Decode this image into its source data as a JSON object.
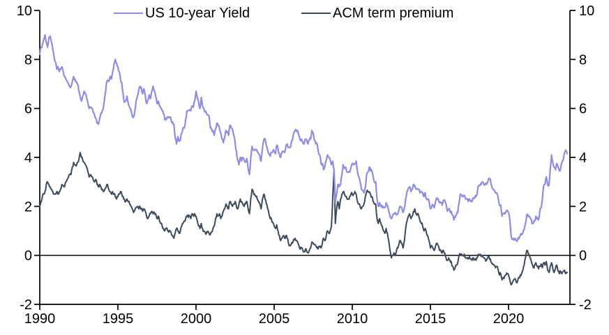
{
  "chart_data": {
    "type": "line",
    "title": "",
    "xlabel": "",
    "ylabel": "",
    "grid": false,
    "legend_position": "top",
    "axis_color": "#000000",
    "background": "#ffffff",
    "ylim": [
      -2,
      10
    ],
    "xlim": [
      1990,
      2023.95
    ],
    "y_ticks_left": [
      "10",
      "8",
      "6",
      "4",
      "2",
      "0",
      "-2"
    ],
    "y_ticks_right": [
      "10",
      "8",
      "6",
      "4",
      "2",
      "0",
      "-2"
    ],
    "y_tick_values": [
      10,
      8,
      6,
      4,
      2,
      0,
      -2
    ],
    "x_tick_labels": [
      "1990",
      "1995",
      "2000",
      "2005",
      "2010",
      "2015",
      "2020"
    ],
    "x_tick_values": [
      1990,
      1995,
      2000,
      2005,
      2010,
      2015,
      2020
    ],
    "zero_line": true,
    "x_start_year": 1990,
    "x_step_months": 1,
    "legend": [
      {
        "label": "US 10-year Yield",
        "color": "#8f8ce8"
      },
      {
        "label": "ACM term premium",
        "color": "#3c4a5c"
      }
    ],
    "series": [
      {
        "name": "US 10-year Yield",
        "color": "#8f8ce8",
        "values": [
          8.2,
          8.5,
          8.6,
          8.8,
          9.0,
          8.7,
          8.5,
          8.9,
          8.95,
          8.7,
          8.4,
          8.1,
          7.9,
          7.6,
          7.7,
          7.5,
          7.6,
          7.7,
          7.5,
          7.3,
          7.2,
          7.1,
          7.0,
          6.9,
          6.9,
          7.1,
          7.3,
          7.2,
          7.1,
          7.0,
          6.7,
          6.5,
          6.3,
          6.5,
          6.7,
          6.6,
          6.4,
          6.2,
          6.0,
          6.05,
          6.0,
          5.85,
          5.75,
          5.6,
          5.4,
          5.35,
          5.6,
          5.8,
          5.9,
          6.1,
          6.5,
          6.95,
          7.15,
          7.1,
          7.3,
          7.2,
          7.5,
          7.8,
          8.0,
          7.85,
          7.7,
          7.5,
          7.2,
          7.05,
          6.6,
          6.25,
          6.3,
          6.5,
          6.2,
          6.05,
          5.95,
          5.7,
          5.65,
          5.9,
          6.3,
          6.5,
          6.75,
          6.9,
          6.85,
          6.6,
          6.8,
          6.55,
          6.2,
          6.35,
          6.55,
          6.4,
          6.7,
          6.9,
          6.7,
          6.5,
          6.2,
          6.3,
          6.1,
          6.0,
          5.9,
          5.8,
          5.55,
          5.6,
          5.65,
          5.65,
          5.65,
          5.5,
          5.45,
          5.35,
          4.8,
          4.55,
          4.85,
          4.65,
          4.7,
          5.0,
          5.2,
          5.2,
          5.55,
          5.9,
          5.9,
          5.95,
          5.9,
          6.1,
          6.05,
          6.3,
          6.7,
          6.4,
          6.25,
          6.0,
          6.45,
          6.1,
          6.0,
          5.85,
          5.8,
          5.75,
          5.7,
          5.2,
          5.15,
          5.1,
          4.9,
          5.15,
          5.4,
          5.3,
          5.2,
          5.0,
          4.75,
          4.6,
          4.8,
          5.1,
          5.05,
          4.9,
          5.3,
          5.2,
          5.15,
          4.9,
          4.6,
          4.25,
          3.9,
          3.7,
          4.0,
          3.85,
          4.0,
          3.9,
          3.8,
          3.95,
          3.55,
          3.3,
          3.95,
          4.45,
          4.3,
          4.3,
          4.3,
          4.25,
          4.15,
          4.05,
          3.85,
          4.35,
          4.7,
          4.75,
          4.5,
          4.3,
          4.15,
          4.05,
          4.2,
          4.25,
          4.25,
          4.15,
          4.5,
          4.35,
          4.15,
          4.0,
          4.2,
          4.25,
          4.2,
          4.45,
          4.55,
          4.4,
          4.4,
          4.55,
          4.7,
          5.0,
          5.1,
          5.1,
          5.1,
          4.9,
          4.7,
          4.75,
          4.6,
          4.55,
          4.75,
          4.7,
          4.55,
          4.7,
          4.75,
          5.1,
          5.0,
          4.7,
          4.55,
          4.55,
          4.2,
          4.1,
          3.75,
          3.75,
          3.5,
          3.65,
          3.9,
          4.1,
          4.0,
          3.9,
          3.7,
          3.85,
          3.5,
          2.15,
          2.5,
          2.9,
          2.8,
          2.9,
          3.3,
          3.7,
          3.55,
          3.6,
          3.4,
          3.4,
          3.4,
          3.6,
          3.75,
          3.7,
          3.75,
          3.85,
          3.4,
          3.2,
          3.0,
          2.7,
          2.65,
          2.55,
          2.75,
          3.3,
          3.4,
          3.6,
          3.45,
          3.45,
          3.2,
          3.0,
          3.0,
          2.3,
          2.0,
          2.15,
          2.0,
          1.95,
          1.95,
          1.95,
          2.15,
          2.05,
          1.8,
          1.6,
          1.5,
          1.65,
          1.7,
          1.75,
          1.65,
          1.7,
          1.9,
          2.0,
          1.95,
          1.75,
          1.95,
          2.3,
          2.6,
          2.75,
          2.8,
          2.6,
          2.7,
          2.9,
          2.85,
          2.7,
          2.7,
          2.7,
          2.55,
          2.6,
          2.55,
          2.4,
          2.55,
          2.3,
          2.3,
          2.2,
          1.9,
          2.0,
          2.05,
          1.95,
          2.2,
          2.35,
          2.3,
          2.15,
          2.15,
          2.05,
          2.25,
          2.25,
          2.1,
          1.8,
          1.9,
          1.8,
          1.8,
          1.65,
          1.45,
          1.55,
          1.65,
          1.75,
          2.15,
          2.5,
          2.45,
          2.4,
          2.45,
          2.3,
          2.3,
          2.2,
          2.3,
          2.2,
          2.2,
          2.35,
          2.35,
          2.4,
          2.55,
          2.85,
          2.85,
          2.9,
          3.0,
          2.9,
          2.9,
          2.9,
          3.0,
          3.15,
          3.1,
          2.85,
          2.7,
          2.65,
          2.55,
          2.55,
          2.35,
          2.05,
          2.05,
          1.6,
          1.7,
          1.7,
          1.8,
          1.85,
          1.75,
          1.45,
          0.8,
          0.65,
          0.65,
          0.7,
          0.6,
          0.65,
          0.68,
          0.8,
          0.85,
          0.92,
          1.05,
          1.3,
          1.65,
          1.6,
          1.6,
          1.5,
          1.3,
          1.3,
          1.4,
          1.6,
          1.55,
          1.45,
          1.8,
          1.95,
          2.3,
          2.85,
          2.9,
          3.2,
          2.9,
          2.85,
          3.5,
          4.1,
          3.8,
          3.6,
          3.5,
          3.75,
          3.6,
          3.45,
          3.55,
          3.8,
          3.9,
          4.2,
          4.3,
          4.15
        ]
      },
      {
        "name": "ACM term premium",
        "color": "#3c4a5c",
        "values": [
          2.0,
          2.2,
          2.4,
          2.5,
          2.6,
          2.9,
          3.0,
          2.9,
          2.8,
          2.7,
          2.6,
          2.5,
          2.5,
          2.6,
          2.5,
          2.6,
          2.7,
          2.9,
          2.85,
          2.8,
          3.0,
          3.1,
          3.2,
          3.3,
          3.3,
          3.6,
          3.8,
          3.7,
          3.65,
          3.8,
          3.9,
          4.2,
          4.0,
          3.9,
          3.8,
          3.7,
          3.6,
          3.4,
          3.2,
          3.3,
          3.2,
          3.1,
          3.0,
          3.1,
          2.9,
          2.8,
          2.9,
          2.8,
          2.7,
          2.6,
          2.7,
          2.8,
          2.9,
          2.7,
          2.6,
          2.5,
          2.6,
          2.5,
          2.4,
          2.3,
          2.4,
          2.5,
          2.6,
          2.5,
          2.4,
          2.3,
          2.2,
          2.3,
          2.2,
          2.1,
          2.0,
          1.9,
          1.75,
          1.85,
          1.95,
          2.0,
          1.9,
          2.0,
          1.9,
          1.8,
          1.9,
          1.8,
          1.6,
          1.5,
          1.6,
          1.7,
          1.8,
          1.7,
          1.75,
          1.7,
          1.5,
          1.6,
          1.4,
          1.3,
          1.2,
          1.1,
          1.0,
          1.1,
          1.05,
          0.95,
          1.0,
          0.9,
          0.8,
          0.7,
          0.9,
          1.1,
          1.0,
          0.9,
          1.0,
          1.2,
          1.3,
          1.4,
          1.5,
          1.6,
          1.55,
          1.6,
          1.5,
          1.7,
          1.6,
          1.7,
          1.6,
          1.4,
          1.2,
          1.1,
          1.3,
          1.1,
          1.0,
          0.95,
          0.9,
          0.95,
          0.9,
          0.85,
          0.95,
          1.1,
          1.2,
          1.5,
          1.7,
          1.6,
          1.7,
          1.5,
          1.6,
          1.8,
          1.9,
          2.1,
          2.0,
          1.9,
          2.2,
          2.1,
          2.0,
          2.1,
          2.2,
          2.0,
          1.9,
          2.1,
          2.3,
          2.2,
          2.1,
          2.0,
          2.1,
          2.2,
          1.9,
          1.7,
          2.3,
          2.7,
          2.6,
          2.5,
          2.4,
          2.3,
          2.2,
          2.1,
          1.9,
          2.3,
          2.5,
          2.3,
          2.1,
          1.9,
          1.7,
          1.5,
          1.45,
          1.35,
          1.2,
          1.1,
          1.25,
          1.0,
          0.8,
          0.6,
          0.7,
          0.8,
          0.7,
          0.8,
          0.7,
          0.5,
          0.4,
          0.45,
          0.5,
          0.65,
          0.7,
          0.6,
          0.55,
          0.4,
          0.25,
          0.3,
          0.2,
          0.15,
          0.25,
          0.15,
          0.1,
          0.2,
          0.3,
          0.55,
          0.5,
          0.45,
          0.4,
          0.35,
          0.3,
          0.35,
          0.3,
          0.5,
          0.7,
          0.6,
          0.8,
          1.0,
          0.9,
          1.0,
          1.2,
          2.4,
          3.5,
          1.3,
          1.9,
          2.2,
          1.9,
          2.3,
          2.5,
          2.6,
          2.5,
          2.4,
          2.3,
          2.3,
          2.4,
          2.5,
          2.5,
          2.5,
          2.6,
          2.5,
          2.2,
          2.1,
          2.0,
          1.9,
          2.0,
          2.1,
          2.4,
          2.6,
          2.6,
          2.6,
          2.5,
          2.4,
          2.2,
          2.1,
          2.1,
          1.5,
          1.3,
          1.5,
          1.3,
          1.2,
          1.0,
          0.9,
          1.1,
          0.9,
          0.6,
          0.2,
          -0.1,
          0.0,
          0.1,
          0.0,
          0.2,
          0.3,
          0.5,
          0.6,
          0.5,
          0.3,
          0.6,
          1.1,
          1.4,
          1.6,
          1.7,
          1.5,
          1.6,
          1.8,
          1.9,
          1.7,
          1.7,
          1.6,
          1.4,
          1.3,
          1.2,
          1.0,
          1.1,
          0.9,
          0.8,
          0.6,
          0.3,
          0.4,
          0.3,
          0.2,
          0.4,
          0.5,
          0.4,
          0.2,
          0.2,
          0.1,
          0.2,
          0.1,
          -0.1,
          -0.2,
          -0.1,
          -0.2,
          -0.25,
          -0.45,
          -0.6,
          -0.5,
          -0.4,
          -0.3,
          0.0,
          0.05,
          0.05,
          0.0,
          0.05,
          -0.1,
          -0.1,
          -0.15,
          -0.05,
          -0.15,
          -0.2,
          -0.1,
          -0.15,
          -0.2,
          -0.1,
          0.05,
          0.0,
          -0.05,
          0.0,
          -0.1,
          -0.15,
          -0.2,
          -0.1,
          -0.05,
          -0.15,
          -0.3,
          -0.35,
          -0.4,
          -0.5,
          -0.45,
          -0.6,
          -0.8,
          -0.75,
          -1.0,
          -0.9,
          -0.85,
          -0.8,
          -0.75,
          -0.8,
          -1.0,
          -1.2,
          -1.1,
          -1.0,
          -0.95,
          -1.1,
          -1.05,
          -0.9,
          -0.8,
          -0.75,
          -0.6,
          -0.4,
          -0.1,
          0.2,
          0.1,
          0.0,
          -0.15,
          -0.35,
          -0.5,
          -0.4,
          -0.3,
          -0.45,
          -0.55,
          -0.45,
          -0.35,
          -0.5,
          -0.3,
          -0.4,
          -0.25,
          -0.6,
          -0.7,
          -0.45,
          -0.3,
          -0.55,
          -0.7,
          -0.55,
          -0.4,
          -0.65,
          -0.75,
          -0.65,
          -0.75,
          -0.65,
          -0.6,
          -0.75,
          -0.7
        ]
      }
    ]
  }
}
